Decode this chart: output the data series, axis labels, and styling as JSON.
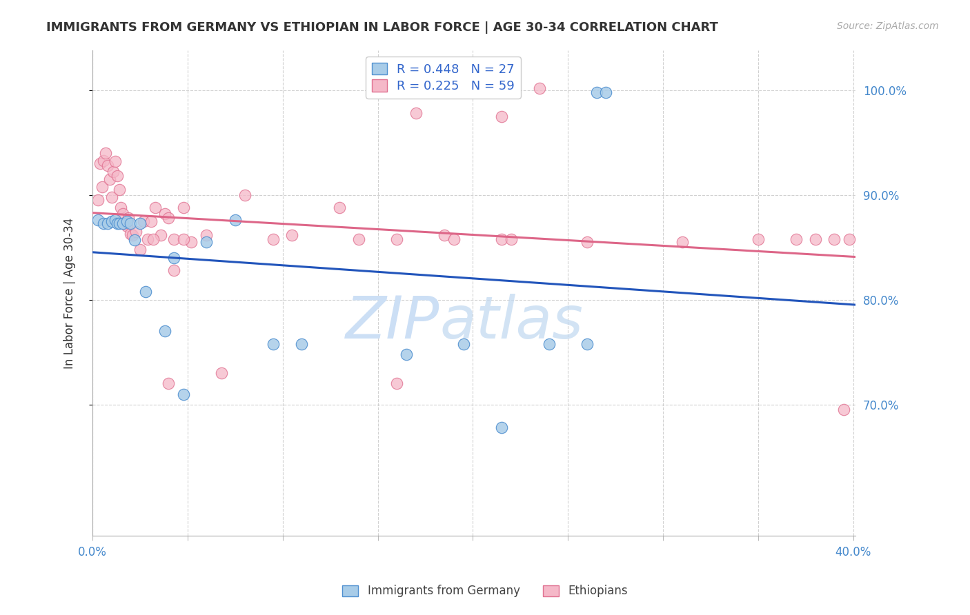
{
  "title": "IMMIGRANTS FROM GERMANY VS ETHIOPIAN IN LABOR FORCE | AGE 30-34 CORRELATION CHART",
  "source": "Source: ZipAtlas.com",
  "ylabel": "In Labor Force | Age 30-34",
  "legend_r_germany": "R = 0.448",
  "legend_n_germany": "N = 27",
  "legend_r_ethiopia": "R = 0.225",
  "legend_n_ethiopia": "N = 59",
  "germany_color": "#a8cce8",
  "germany_edge": "#5090d0",
  "ethiopia_color": "#f5b8c8",
  "ethiopia_edge": "#e07090",
  "trend_germany_color": "#2255bb",
  "trend_ethiopia_color": "#dd6688",
  "watermark_zip_color": "#ccdff5",
  "watermark_atlas_color": "#c0d8f0",
  "xmin": 0.0,
  "xmax": 0.401,
  "ymin": 0.575,
  "ymax": 1.038,
  "ytick_positions": [
    0.7,
    0.8,
    0.9,
    1.0
  ],
  "ytick_labels": [
    "70.0%",
    "80.0%",
    "90.0%",
    "100.0%"
  ],
  "xtick_positions": [
    0.0,
    0.05,
    0.1,
    0.15,
    0.2,
    0.25,
    0.3,
    0.35,
    0.4
  ],
  "xtick_labels": [
    "0.0%",
    "",
    "",
    "",
    "",
    "",
    "",
    "",
    "40.0%"
  ],
  "title_fontsize": 13,
  "source_fontsize": 10,
  "ylabel_fontsize": 12,
  "tick_fontsize": 12,
  "legend_fontsize": 13,
  "germany_x": [
    0.003,
    0.006,
    0.008,
    0.01,
    0.012,
    0.013,
    0.014,
    0.016,
    0.018,
    0.02,
    0.022,
    0.025,
    0.028,
    0.038,
    0.043,
    0.048,
    0.06,
    0.075,
    0.095,
    0.11,
    0.165,
    0.195,
    0.215,
    0.24,
    0.26,
    0.265,
    0.27
  ],
  "germany_y": [
    0.876,
    0.873,
    0.873,
    0.875,
    0.876,
    0.873,
    0.873,
    0.873,
    0.875,
    0.873,
    0.857,
    0.873,
    0.808,
    0.77,
    0.84,
    0.71,
    0.855,
    0.876,
    0.758,
    0.758,
    0.748,
    0.758,
    0.678,
    0.758,
    0.758,
    0.998,
    0.998
  ],
  "ethiopia_x": [
    0.003,
    0.004,
    0.005,
    0.006,
    0.007,
    0.008,
    0.009,
    0.01,
    0.011,
    0.012,
    0.013,
    0.014,
    0.015,
    0.016,
    0.017,
    0.018,
    0.019,
    0.02,
    0.021,
    0.023,
    0.025,
    0.027,
    0.029,
    0.031,
    0.033,
    0.036,
    0.038,
    0.04,
    0.043,
    0.048,
    0.052,
    0.06,
    0.068,
    0.08,
    0.095,
    0.105,
    0.13,
    0.16,
    0.185,
    0.215,
    0.26,
    0.31,
    0.35,
    0.37,
    0.38,
    0.39,
    0.395,
    0.398,
    0.032,
    0.043,
    0.048,
    0.04,
    0.14,
    0.16,
    0.17,
    0.19,
    0.215,
    0.22,
    0.235
  ],
  "ethiopia_y": [
    0.895,
    0.93,
    0.908,
    0.933,
    0.94,
    0.928,
    0.915,
    0.898,
    0.922,
    0.932,
    0.918,
    0.905,
    0.888,
    0.882,
    0.872,
    0.87,
    0.878,
    0.863,
    0.862,
    0.865,
    0.848,
    0.875,
    0.858,
    0.875,
    0.888,
    0.862,
    0.882,
    0.878,
    0.828,
    0.888,
    0.855,
    0.862,
    0.73,
    0.9,
    0.858,
    0.862,
    0.888,
    0.858,
    0.862,
    0.975,
    0.855,
    0.855,
    0.858,
    0.858,
    0.858,
    0.858,
    0.695,
    0.858,
    0.858,
    0.858,
    0.858,
    0.72,
    0.858,
    0.72,
    0.978,
    0.858,
    0.858,
    0.858,
    1.002
  ]
}
